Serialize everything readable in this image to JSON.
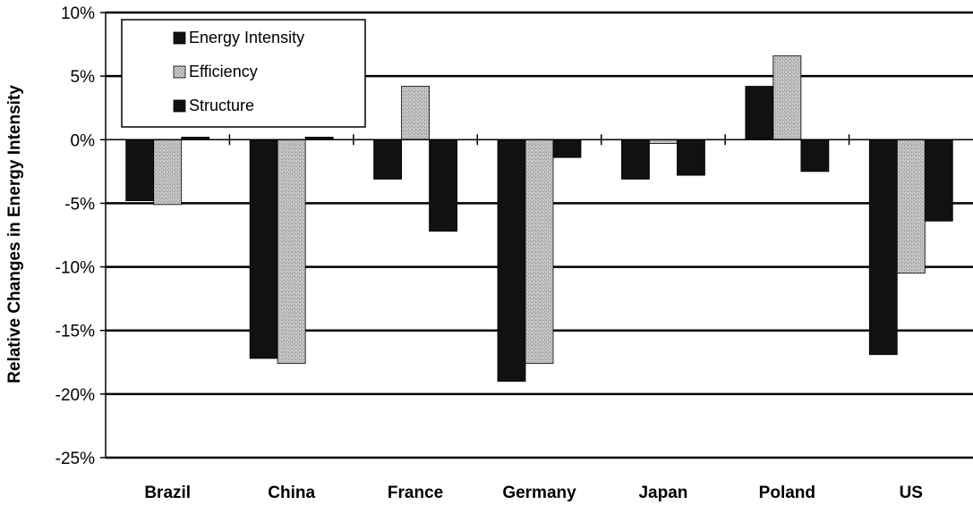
{
  "chart_data": {
    "type": "bar",
    "title": "",
    "xlabel": "",
    "ylabel": "Relative Changes in Energy Intensity",
    "ylim": [
      -25,
      10
    ],
    "yticks": [
      10,
      5,
      0,
      -5,
      -10,
      -15,
      -20,
      -25
    ],
    "ytick_labels": [
      "10%",
      "5%",
      "0%",
      "-5%",
      "-10%",
      "-15%",
      "-20%",
      "-25%"
    ],
    "categories": [
      "Brazil",
      "China",
      "France",
      "Germany",
      "Japan",
      "Poland",
      "US"
    ],
    "series": [
      {
        "name": "Energy Intensity",
        "color": "#111111",
        "values": [
          -4.8,
          -17.2,
          -3.1,
          -19.0,
          -3.1,
          4.2,
          -16.9
        ]
      },
      {
        "name": "Efficiency",
        "color": "#b0b0b0",
        "values": [
          -5.1,
          -17.6,
          4.2,
          -17.6,
          -0.3,
          6.6,
          -10.5
        ]
      },
      {
        "name": "Structure",
        "color": "#111111",
        "values": [
          0.2,
          0.2,
          -7.2,
          -1.4,
          -2.8,
          -2.5,
          -6.4
        ]
      }
    ],
    "grid": true,
    "legend_position": "top-left"
  }
}
